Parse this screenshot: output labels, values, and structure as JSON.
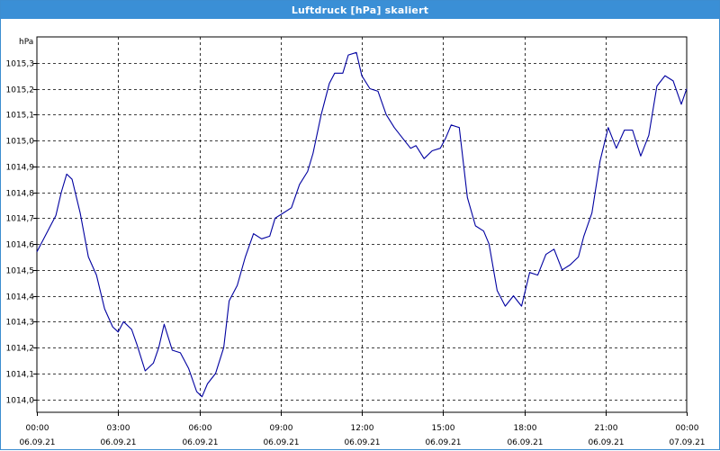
{
  "window": {
    "title": "Luftdruck [hPa] skaliert"
  },
  "chart_data": {
    "type": "line",
    "title": "Luftdruck [hPa] skaliert",
    "ylabel": "hPa",
    "xlabel": "",
    "ylim": [
      1013.95,
      1015.4
    ],
    "xlim": [
      0,
      24
    ],
    "grid": true,
    "grid_style": "dashed",
    "y_ticks": [
      {
        "v": 1014.0,
        "label": "1014,0"
      },
      {
        "v": 1014.1,
        "label": "1014,1"
      },
      {
        "v": 1014.2,
        "label": "1014,2"
      },
      {
        "v": 1014.3,
        "label": "1014,3"
      },
      {
        "v": 1014.4,
        "label": "1014,4"
      },
      {
        "v": 1014.5,
        "label": "1014,5"
      },
      {
        "v": 1014.6,
        "label": "1014,6"
      },
      {
        "v": 1014.7,
        "label": "1014,7"
      },
      {
        "v": 1014.8,
        "label": "1014,8"
      },
      {
        "v": 1014.9,
        "label": "1014,9"
      },
      {
        "v": 1015.0,
        "label": "1015,0"
      },
      {
        "v": 1015.1,
        "label": "1015,1"
      },
      {
        "v": 1015.2,
        "label": "1015,2"
      },
      {
        "v": 1015.3,
        "label": "1015,3"
      }
    ],
    "x_ticks": [
      {
        "h": 0,
        "time": "00:00",
        "date": "06.09.21"
      },
      {
        "h": 3,
        "time": "03:00",
        "date": "06.09.21"
      },
      {
        "h": 6,
        "time": "06:00",
        "date": "06.09.21"
      },
      {
        "h": 9,
        "time": "09:00",
        "date": "06.09.21"
      },
      {
        "h": 12,
        "time": "12:00",
        "date": "06.09.21"
      },
      {
        "h": 15,
        "time": "15:00",
        "date": "06.09.21"
      },
      {
        "h": 18,
        "time": "18:00",
        "date": "06.09.21"
      },
      {
        "h": 21,
        "time": "21:00",
        "date": "06.09.21"
      },
      {
        "h": 24,
        "time": "00:00",
        "date": "07.09.21"
      }
    ],
    "series": [
      {
        "color": "#0000a0",
        "x": [
          0.0,
          0.4,
          0.7,
          0.9,
          1.1,
          1.3,
          1.6,
          1.9,
          2.2,
          2.5,
          2.8,
          3.0,
          3.2,
          3.5,
          3.7,
          4.0,
          4.3,
          4.5,
          4.7,
          5.0,
          5.3,
          5.6,
          5.9,
          6.1,
          6.3,
          6.6,
          6.9,
          7.1,
          7.4,
          7.7,
          8.0,
          8.3,
          8.6,
          8.8,
          9.1,
          9.4,
          9.7,
          10.0,
          10.2,
          10.5,
          10.8,
          11.0,
          11.3,
          11.5,
          11.8,
          12.0,
          12.3,
          12.6,
          12.9,
          13.2,
          13.5,
          13.8,
          14.0,
          14.3,
          14.6,
          14.9,
          15.1,
          15.3,
          15.6,
          15.9,
          16.2,
          16.5,
          16.7,
          17.0,
          17.3,
          17.6,
          17.9,
          18.2,
          18.5,
          18.8,
          19.1,
          19.4,
          19.7,
          20.0,
          20.2,
          20.5,
          20.8,
          21.1,
          21.4,
          21.7,
          22.0,
          22.3,
          22.6,
          22.9,
          23.2,
          23.5,
          23.8,
          24.0
        ],
        "y": [
          1014.57,
          1014.65,
          1014.71,
          1014.8,
          1014.87,
          1014.85,
          1014.72,
          1014.55,
          1014.48,
          1014.35,
          1014.28,
          1014.26,
          1014.3,
          1014.27,
          1014.21,
          1014.11,
          1014.14,
          1014.2,
          1014.29,
          1014.19,
          1014.18,
          1014.12,
          1014.03,
          1014.01,
          1014.06,
          1014.1,
          1014.2,
          1014.38,
          1014.44,
          1014.55,
          1014.64,
          1014.62,
          1014.63,
          1014.7,
          1014.72,
          1014.74,
          1014.83,
          1014.88,
          1014.95,
          1015.1,
          1015.22,
          1015.26,
          1015.26,
          1015.33,
          1015.34,
          1015.25,
          1015.2,
          1015.19,
          1015.1,
          1015.05,
          1015.01,
          1014.97,
          1014.98,
          1014.93,
          1014.96,
          1014.97,
          1015.01,
          1015.06,
          1015.05,
          1014.78,
          1014.67,
          1014.65,
          1014.6,
          1014.42,
          1014.36,
          1014.4,
          1014.36,
          1014.49,
          1014.48,
          1014.56,
          1014.58,
          1014.5,
          1014.52,
          1014.55,
          1014.63,
          1014.72,
          1014.92,
          1015.05,
          1014.97,
          1015.04,
          1015.04,
          1014.94,
          1015.02,
          1015.21,
          1015.25,
          1015.23,
          1015.14,
          1015.2
        ]
      }
    ]
  }
}
